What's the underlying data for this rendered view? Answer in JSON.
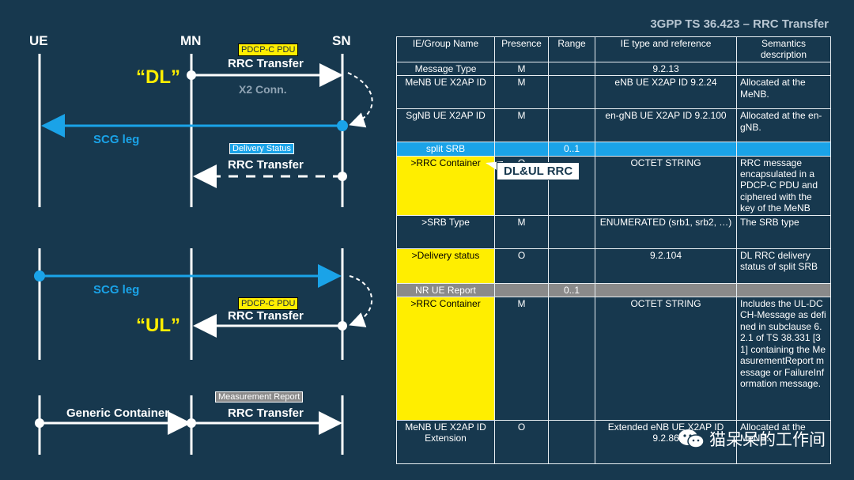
{
  "header": {
    "title": "3GPP TS 36.423 – RRC Transfer"
  },
  "entities": {
    "ue": "UE",
    "mn": "MN",
    "sn": "SN"
  },
  "dl_section": {
    "pdcp_tag": "PDCP-C PDU",
    "rrc_transfer": "RRC Transfer",
    "dl_label": "“DL”",
    "x2_conn": "X2 Conn.",
    "scg_leg": "SCG leg",
    "delivery_tag": "Delivery Status",
    "rrc_transfer_2": "RRC Transfer"
  },
  "ul_section": {
    "scg_leg": "SCG leg",
    "pdcp_tag": "PDCP-C PDU",
    "rrc_transfer": "RRC Transfer",
    "ul_label": "“UL”"
  },
  "generic_section": {
    "generic_container": "Generic Container",
    "meas_tag": "Measurement Report",
    "rrc_transfer": "RRC Transfer"
  },
  "callout": "DL&UL RRC",
  "table": {
    "headers": [
      "IE/Group Name",
      "Presence",
      "Range",
      "IE type and reference",
      "Semantics description"
    ],
    "rows": [
      {
        "name": "Message Type",
        "presence": "M",
        "range": "",
        "type": "9.2.13",
        "semantics": ""
      },
      {
        "name": "MeNB UE X2AP ID",
        "presence": "M",
        "range": "",
        "type": "eNB UE X2AP ID 9.2.24",
        "semantics": "Allocated at the MeNB."
      },
      {
        "name": "SgNB UE X2AP ID",
        "presence": "M",
        "range": "",
        "type": "en-gNB UE X2AP ID 9.2.100",
        "semantics": "Allocated at the en-gNB."
      },
      {
        "name": "split SRB",
        "presence": "",
        "range": "0..1",
        "type": "",
        "semantics": ""
      },
      {
        "name": ">RRC Container",
        "presence": "O",
        "range": "",
        "type": "OCTET STRING",
        "semantics": "RRC message encapsulated in a PDCP-C PDU and ciphered with the key of the MeNB"
      },
      {
        "name": ">SRB Type",
        "presence": "M",
        "range": "",
        "type": "ENUMERATED (srb1, srb2, …)",
        "semantics": "The SRB type"
      },
      {
        "name": ">Delivery status",
        "presence": "O",
        "range": "",
        "type": "9.2.104",
        "semantics": "DL RRC delivery status of split SRB"
      },
      {
        "name": "NR UE Report",
        "presence": "",
        "range": "0..1",
        "type": "",
        "semantics": ""
      },
      {
        "name": ">RRC Container",
        "presence": "M",
        "range": "",
        "type": "OCTET STRING",
        "semantics": "Includes the UL-DCCH-Message as defined in subclause 6.2.1 of TS 38.331 [31] containing the MeasurementReport message or FailureInformation message."
      },
      {
        "name": "MeNB UE X2AP ID Extension",
        "presence": "O",
        "range": "",
        "type": "Extended eNB UE X2AP ID 9.2.86",
        "semantics": "Allocated at the MeNB."
      }
    ]
  },
  "watermark": "猫呆呆的工作间",
  "colors": {
    "background": "#17384e",
    "accent_blue": "#1aa3e8",
    "highlight_yellow": "#ffee00",
    "group_gray": "#8a8a8a"
  }
}
